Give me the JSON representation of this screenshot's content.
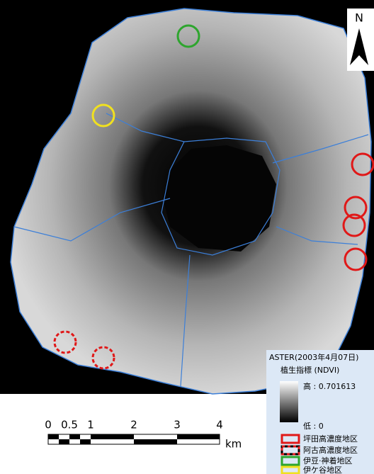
{
  "north": "N",
  "aster": "ASTER(2003年4月07日)",
  "ndvi_title": "植生指標 (NDVI)",
  "high": "高 : 0.701613",
  "low": "低 : 0",
  "legend": [
    "坪田高濃度地区",
    "阿古高濃度地区",
    "伊豆·神着地区",
    "伊ケ谷地区"
  ],
  "scale": {
    "labels": [
      "0",
      "0.5",
      "1",
      "2",
      "3",
      "4"
    ],
    "unit": "km"
  }
}
